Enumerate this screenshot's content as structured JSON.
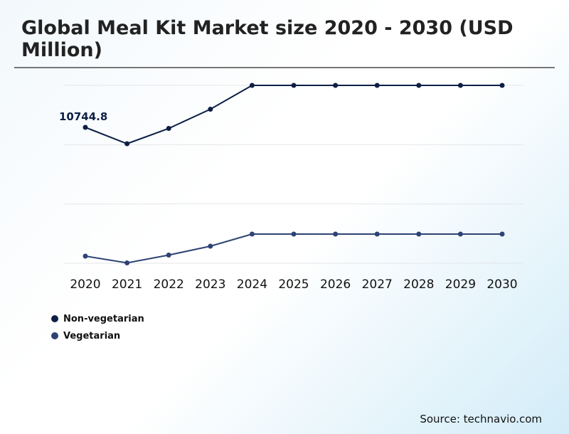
{
  "chart_data": {
    "type": "line",
    "title": "Global Meal Kit Market size 2020 - 2030 (USD Million)",
    "categories": [
      "2020",
      "2021",
      "2022",
      "2023",
      "2024",
      "2025",
      "2026",
      "2027",
      "2028",
      "2029",
      "2030"
    ],
    "series": [
      {
        "name": "Non-vegetarian",
        "color": "#0d1f45",
        "values": [
          10744.8,
          9452,
          10660,
          12180,
          14065,
          14065,
          14065,
          14065,
          14065,
          14065,
          14065
        ]
      },
      {
        "name": "Vegetarian",
        "color": "#2e4374",
        "values": [
          563,
          30,
          647,
          1350,
          2307,
          2307,
          2307,
          2307,
          2307,
          2307,
          2307
        ]
      }
    ],
    "annotations": [
      {
        "series": "Non-vegetarian",
        "category": "2020",
        "text": "10744.8"
      }
    ],
    "ylim": [
      0,
      14065
    ],
    "grid": true,
    "legend_position": "bottom-left",
    "source": "Source: technavio.com"
  }
}
